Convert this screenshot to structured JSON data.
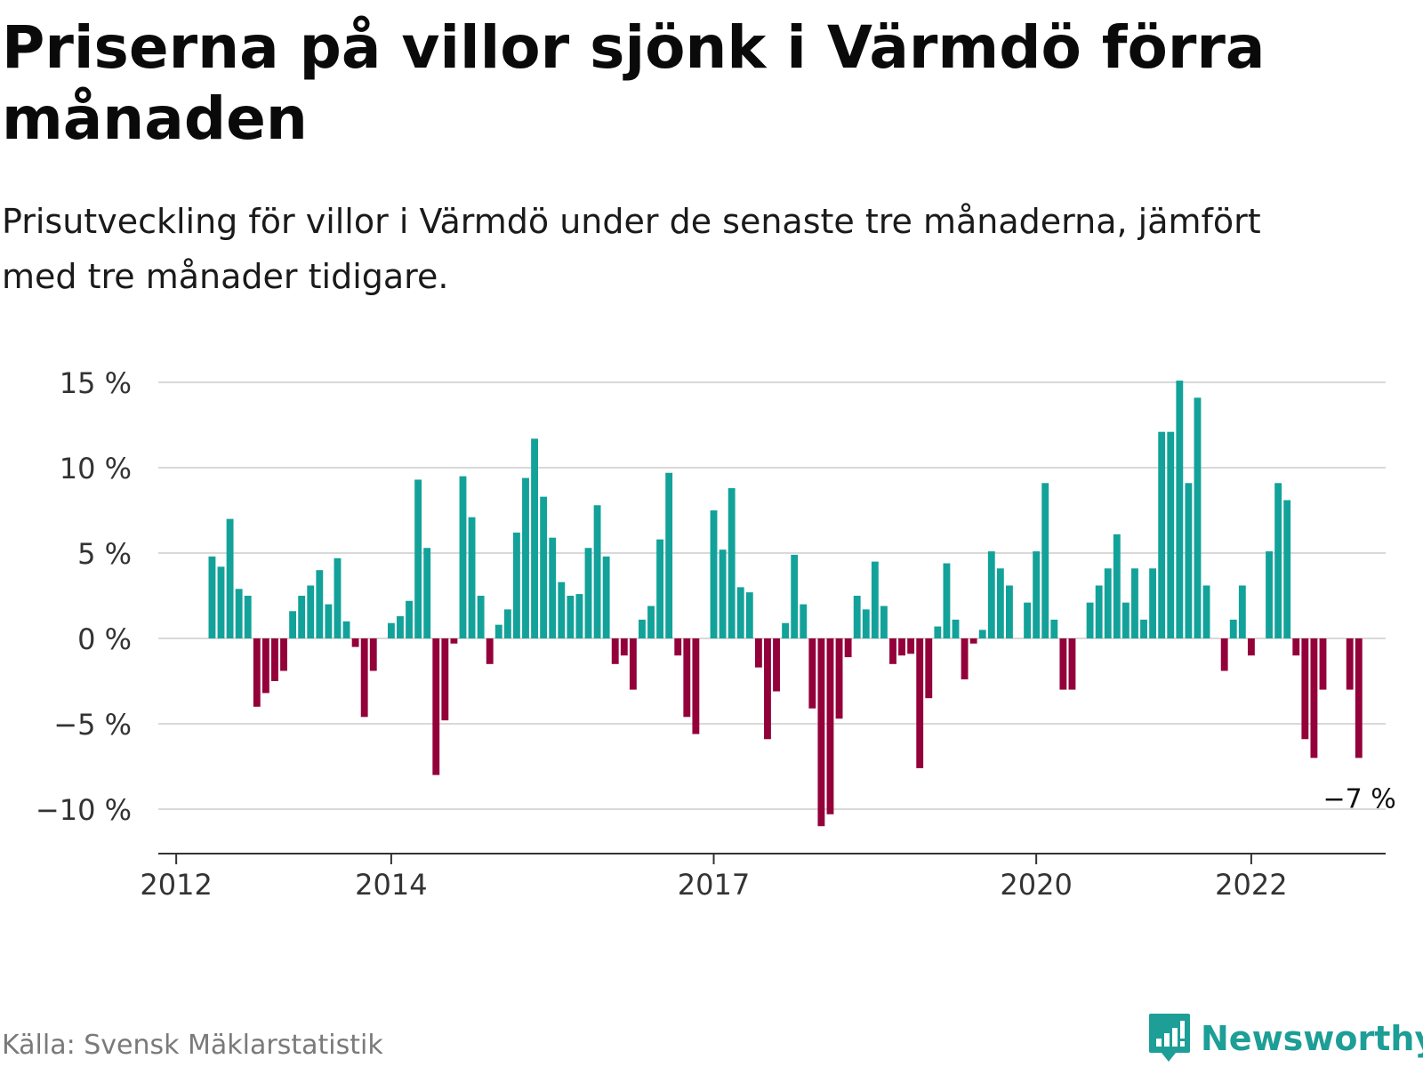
{
  "title": "Priserna på villor sjönk i Värmdö förra månaden",
  "subtitle": "Prisutveckling för villor i Värmdö under de senaste tre månaderna, jämfört med tre månader tidigare.",
  "source": "Källa: Svensk Mäklarstatistik",
  "brand": {
    "name": "Newsworthy",
    "icon": "newsworthy-bar-chart-logo-icon",
    "color": "#1d9e97"
  },
  "colors": {
    "positive": "#12a29a",
    "negative": "#93003a",
    "grid": "#d9d9d9",
    "axis": "#333333"
  },
  "chart_data": {
    "type": "bar",
    "ylim": [
      -12.5,
      15
    ],
    "yticks": [
      {
        "value": 15,
        "label": "15 %"
      },
      {
        "value": 10,
        "label": "10 %"
      },
      {
        "value": 5,
        "label": "5 %"
      },
      {
        "value": 0,
        "label": "0 %"
      },
      {
        "value": -5,
        "label": "−5 %"
      },
      {
        "value": -10,
        "label": "−10 %"
      }
    ],
    "xticks": [
      {
        "date": "2012-01",
        "label": "2012"
      },
      {
        "date": "2014-01",
        "label": "2014"
      },
      {
        "date": "2017-01",
        "label": "2017"
      },
      {
        "date": "2020-01",
        "label": "2020"
      },
      {
        "date": "2022-01",
        "label": "2022"
      }
    ],
    "x_range": [
      "2011-11",
      "2023-04"
    ],
    "grid": true,
    "annotation": {
      "date": "2023-01",
      "value": -7,
      "label": "−7 %"
    },
    "x": [
      "2012-05",
      "2012-06",
      "2012-07",
      "2012-08",
      "2012-09",
      "2012-10",
      "2012-11",
      "2012-12",
      "2013-01",
      "2013-02",
      "2013-03",
      "2013-04",
      "2013-05",
      "2013-06",
      "2013-07",
      "2013-08",
      "2013-09",
      "2013-10",
      "2013-11",
      "2013-12",
      "2014-01",
      "2014-02",
      "2014-03",
      "2014-04",
      "2014-05",
      "2014-06",
      "2014-07",
      "2014-08",
      "2014-09",
      "2014-10",
      "2014-11",
      "2014-12",
      "2015-01",
      "2015-02",
      "2015-03",
      "2015-04",
      "2015-05",
      "2015-06",
      "2015-07",
      "2015-08",
      "2015-09",
      "2015-10",
      "2015-11",
      "2015-12",
      "2016-01",
      "2016-02",
      "2016-03",
      "2016-04",
      "2016-05",
      "2016-06",
      "2016-07",
      "2016-08",
      "2016-09",
      "2016-10",
      "2016-11",
      "2016-12",
      "2017-01",
      "2017-02",
      "2017-03",
      "2017-04",
      "2017-05",
      "2017-06",
      "2017-07",
      "2017-08",
      "2017-09",
      "2017-10",
      "2017-11",
      "2017-12",
      "2018-01",
      "2018-02",
      "2018-03",
      "2018-04",
      "2018-05",
      "2018-06",
      "2018-07",
      "2018-08",
      "2018-09",
      "2018-10",
      "2018-11",
      "2018-12",
      "2019-01",
      "2019-02",
      "2019-03",
      "2019-04",
      "2019-05",
      "2019-06",
      "2019-07",
      "2019-08",
      "2019-09",
      "2019-10",
      "2019-11",
      "2019-12",
      "2020-01",
      "2020-02",
      "2020-03",
      "2020-04",
      "2020-05",
      "2020-06",
      "2020-07",
      "2020-08",
      "2020-09",
      "2020-10",
      "2020-11",
      "2020-12",
      "2021-01",
      "2021-02",
      "2021-03",
      "2021-04",
      "2021-05",
      "2021-06",
      "2021-07",
      "2021-08",
      "2021-09",
      "2021-10",
      "2021-11",
      "2021-12",
      "2022-01",
      "2022-02",
      "2022-03",
      "2022-04",
      "2022-05",
      "2022-06",
      "2022-07",
      "2022-08",
      "2022-09",
      "2022-10",
      "2022-11",
      "2022-12",
      "2023-01"
    ],
    "values": [
      4.8,
      4.2,
      7.0,
      2.9,
      2.5,
      -4.0,
      -3.2,
      -2.5,
      -1.9,
      1.6,
      2.5,
      3.1,
      4.0,
      2.0,
      4.7,
      1.0,
      -0.5,
      -4.6,
      -1.9,
      0,
      0.9,
      1.3,
      2.2,
      9.3,
      5.3,
      -8.0,
      -4.8,
      -0.3,
      9.5,
      7.1,
      2.5,
      -1.5,
      0.8,
      1.7,
      6.2,
      9.4,
      11.7,
      8.3,
      5.9,
      3.3,
      2.5,
      2.6,
      5.3,
      7.8,
      4.8,
      -1.5,
      -1.0,
      -3.0,
      1.1,
      1.9,
      5.8,
      9.7,
      -1.0,
      -4.6,
      -5.6,
      0,
      7.5,
      5.2,
      8.8,
      3.0,
      2.7,
      -1.7,
      -5.9,
      -3.1,
      0.9,
      4.9,
      2.0,
      -4.1,
      -11.0,
      -10.3,
      -4.7,
      -1.1,
      2.5,
      1.7,
      4.5,
      1.9,
      -1.5,
      -1.0,
      -0.9,
      -7.6,
      -3.5,
      0.7,
      4.4,
      1.1,
      -2.4,
      -0.3,
      0.5,
      5.1,
      4.1,
      3.1,
      0,
      2.1,
      5.1,
      9.1,
      1.1,
      -3.0,
      -3.0,
      0,
      2.1,
      3.1,
      4.1,
      6.1,
      2.1,
      4.1,
      1.1,
      4.1,
      12.1,
      12.1,
      15.1,
      9.1,
      14.1,
      3.1,
      0,
      -1.9,
      1.1,
      3.1,
      -1.0,
      0,
      5.1,
      9.1,
      8.1,
      -1.0,
      -5.9,
      -7.0,
      -3.0,
      0,
      0,
      -3.0,
      -7.0
    ]
  }
}
